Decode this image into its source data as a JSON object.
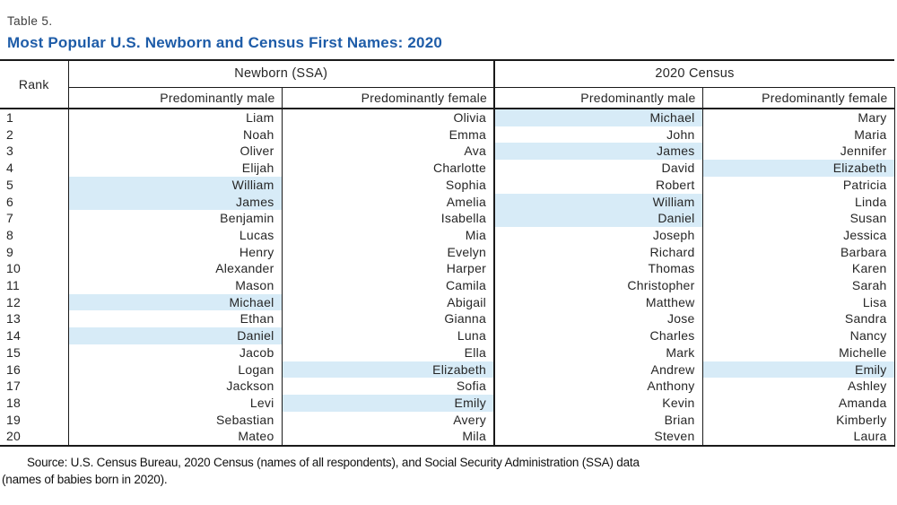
{
  "page": {
    "table_label": "Table 5.",
    "title": "Most Popular U.S. Newborn and Census First Names: 2020"
  },
  "colors": {
    "title_blue": "#1E5CA8",
    "highlight_blue": "#D7EBF7"
  },
  "table": {
    "rank_header": "Rank",
    "groups": [
      {
        "label": "Newborn (SSA)"
      },
      {
        "label": "2020 Census"
      }
    ],
    "sub_headers": [
      "Predominantly male",
      "Predominantly female",
      "Predominantly male",
      "Predominantly female"
    ],
    "columns": [
      "newborn_male",
      "newborn_female",
      "census_male",
      "census_female"
    ],
    "rows": [
      {
        "rank": "1",
        "newborn_male": "Liam",
        "newborn_female": "Olivia",
        "census_male": "Michael",
        "census_female": "Mary",
        "highlights": [
          "census_male"
        ]
      },
      {
        "rank": "2",
        "newborn_male": "Noah",
        "newborn_female": "Emma",
        "census_male": "John",
        "census_female": "Maria",
        "highlights": []
      },
      {
        "rank": "3",
        "newborn_male": "Oliver",
        "newborn_female": "Ava",
        "census_male": "James",
        "census_female": "Jennifer",
        "highlights": [
          "census_male"
        ]
      },
      {
        "rank": "4",
        "newborn_male": "Elijah",
        "newborn_female": "Charlotte",
        "census_male": "David",
        "census_female": "Elizabeth",
        "highlights": [
          "census_female"
        ]
      },
      {
        "rank": "5",
        "newborn_male": "William",
        "newborn_female": "Sophia",
        "census_male": "Robert",
        "census_female": "Patricia",
        "highlights": [
          "newborn_male"
        ]
      },
      {
        "rank": "6",
        "newborn_male": "James",
        "newborn_female": "Amelia",
        "census_male": "William",
        "census_female": "Linda",
        "highlights": [
          "newborn_male",
          "census_male"
        ]
      },
      {
        "rank": "7",
        "newborn_male": "Benjamin",
        "newborn_female": "Isabella",
        "census_male": "Daniel",
        "census_female": "Susan",
        "highlights": [
          "census_male"
        ]
      },
      {
        "rank": "8",
        "newborn_male": "Lucas",
        "newborn_female": "Mia",
        "census_male": "Joseph",
        "census_female": "Jessica",
        "highlights": []
      },
      {
        "rank": "9",
        "newborn_male": "Henry",
        "newborn_female": "Evelyn",
        "census_male": "Richard",
        "census_female": "Barbara",
        "highlights": []
      },
      {
        "rank": "10",
        "newborn_male": "Alexander",
        "newborn_female": "Harper",
        "census_male": "Thomas",
        "census_female": "Karen",
        "highlights": []
      },
      {
        "rank": "11",
        "newborn_male": "Mason",
        "newborn_female": "Camila",
        "census_male": "Christopher",
        "census_female": "Sarah",
        "highlights": []
      },
      {
        "rank": "12",
        "newborn_male": "Michael",
        "newborn_female": "Abigail",
        "census_male": "Matthew",
        "census_female": "Lisa",
        "highlights": [
          "newborn_male"
        ]
      },
      {
        "rank": "13",
        "newborn_male": "Ethan",
        "newborn_female": "Gianna",
        "census_male": "Jose",
        "census_female": "Sandra",
        "highlights": []
      },
      {
        "rank": "14",
        "newborn_male": "Daniel",
        "newborn_female": "Luna",
        "census_male": "Charles",
        "census_female": "Nancy",
        "highlights": [
          "newborn_male"
        ]
      },
      {
        "rank": "15",
        "newborn_male": "Jacob",
        "newborn_female": "Ella",
        "census_male": "Mark",
        "census_female": "Michelle",
        "highlights": []
      },
      {
        "rank": "16",
        "newborn_male": "Logan",
        "newborn_female": "Elizabeth",
        "census_male": "Andrew",
        "census_female": "Emily",
        "highlights": [
          "newborn_female",
          "census_female"
        ]
      },
      {
        "rank": "17",
        "newborn_male": "Jackson",
        "newborn_female": "Sofia",
        "census_male": "Anthony",
        "census_female": "Ashley",
        "highlights": []
      },
      {
        "rank": "18",
        "newborn_male": "Levi",
        "newborn_female": "Emily",
        "census_male": "Kevin",
        "census_female": "Amanda",
        "highlights": [
          "newborn_female"
        ]
      },
      {
        "rank": "19",
        "newborn_male": "Sebastian",
        "newborn_female": "Avery",
        "census_male": "Brian",
        "census_female": "Kimberly",
        "highlights": []
      },
      {
        "rank": "20",
        "newborn_male": "Mateo",
        "newborn_female": "Mila",
        "census_male": "Steven",
        "census_female": "Laura",
        "highlights": []
      }
    ]
  },
  "source_note": {
    "line1": "Source: U.S. Census Bureau, 2020 Census (names of all respondents), and Social Security Administration (SSA) data",
    "line2": "(names of babies born in 2020)."
  }
}
